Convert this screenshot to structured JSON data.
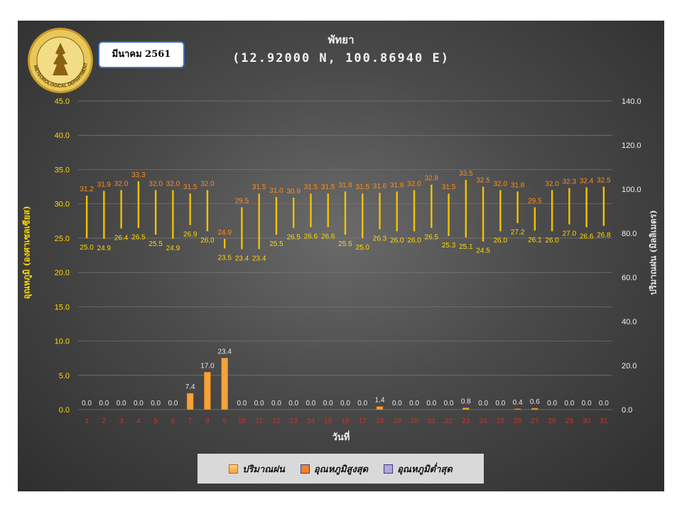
{
  "header": {
    "title": "พัทยา",
    "subtitle": "(12.92000 N, 100.86940 E)",
    "month_label": "มีนาคม 2561",
    "logo_text": "METEOROLOGICAL DEPARTMENT"
  },
  "legend": {
    "items": [
      "ปริมาณฝน",
      "อุณหภูมิสูงสุด",
      "อุณหภูมิต่ำสุด"
    ]
  },
  "colors": {
    "rain": "#f4a33a",
    "max_temp": "#ff7f27",
    "min_temp": "#b4a7d6",
    "temp_bar": "#f2c200",
    "left_axis": "#ffd700",
    "tick_x": "#c0392b",
    "rain_label": "#e6e6e6",
    "min_label": "#ffd700",
    "max_label": "#ff8c1a"
  },
  "chart_data": {
    "type": "bar",
    "xlabel": "วันที่",
    "ylabel_left": "อุณหภูมิ (องศาเซลเซียส)",
    "ylabel_right": "ปริมาณฝน (มิลลิเมตร)",
    "ylim_left": [
      0,
      45
    ],
    "yticks_left": [
      "0.0",
      "5.0",
      "10.0",
      "15.0",
      "20.0",
      "25.0",
      "30.0",
      "35.0",
      "40.0",
      "45.0"
    ],
    "ylim_right": [
      0,
      140
    ],
    "yticks_right": [
      "0.0",
      "20.0",
      "40.0",
      "60.0",
      "80.0",
      "100.0",
      "120.0",
      "140.0"
    ],
    "grid": true,
    "legend_position": "bottom",
    "categories": [
      "1",
      "2",
      "3",
      "4",
      "5",
      "6",
      "7",
      "8",
      "9",
      "10",
      "11",
      "12",
      "13",
      "14",
      "15",
      "16",
      "17",
      "18",
      "19",
      "20",
      "21",
      "22",
      "23",
      "24",
      "25",
      "26",
      "27",
      "28",
      "29",
      "30",
      "31"
    ],
    "series": [
      {
        "name": "ปริมาณฝน",
        "values": [
          0,
          0,
          0,
          0,
          0,
          0,
          7.4,
          17.0,
          23.4,
          0,
          0,
          0,
          0,
          0,
          0,
          0,
          0,
          1.4,
          0,
          0,
          0,
          0,
          0.8,
          0,
          0,
          0.4,
          0.6,
          0,
          0,
          0,
          0
        ],
        "labels": [
          "0.0",
          "0.0",
          "0.0",
          "0.0",
          "0.0",
          "0.0",
          "7.4",
          "17.0",
          "23.4",
          "0.0",
          "0.0",
          "0.0",
          "0.0",
          "0.0",
          "0.0",
          "0.0",
          "0.0",
          "1.4",
          "0.0",
          "0.0",
          "0.0",
          "0.0",
          "0.8",
          "0.0",
          "0.0",
          "0.4",
          "0.6",
          "0.0",
          "0.0",
          "0.0",
          "0.0"
        ]
      },
      {
        "name": "อุณหภูมิสูงสุด",
        "values": [
          31.2,
          31.9,
          32.0,
          33.3,
          32.0,
          32.0,
          31.5,
          32.0,
          24.9,
          29.5,
          31.5,
          31.0,
          30.9,
          31.5,
          31.5,
          31.8,
          31.5,
          31.6,
          31.8,
          32.0,
          32.8,
          31.5,
          33.5,
          32.5,
          32.0,
          31.8,
          29.5,
          32.0,
          32.3,
          32.4,
          32.5
        ],
        "labels": [
          "31.2",
          "31.9",
          "32.0",
          "33.3",
          "32.0",
          "32.0",
          "31.5",
          "32.0",
          "24.9",
          "29.5",
          "31.5",
          "31.0",
          "30.9",
          "31.5",
          "31.5",
          "31.8",
          "31.5",
          "31.6",
          "31.8",
          "32.0",
          "32.8",
          "31.5",
          "33.5",
          "32.5",
          "32.0",
          "31.8",
          "29.5",
          "32.0",
          "32.3",
          "32.4",
          "32.5"
        ]
      },
      {
        "name": "อุณหภูมิต่ำสุด",
        "values": [
          25.0,
          24.9,
          26.4,
          26.5,
          25.5,
          24.9,
          26.9,
          26.0,
          23.5,
          23.4,
          23.4,
          25.5,
          26.5,
          26.6,
          26.6,
          25.5,
          25.0,
          26.3,
          26.0,
          26.0,
          26.5,
          25.3,
          25.1,
          24.5,
          26.0,
          27.2,
          26.1,
          26.0,
          27.0,
          26.6,
          26.8
        ],
        "labels": [
          "25.0",
          "24.9",
          "26.4",
          "26.5",
          "25.5",
          "24.9",
          "26.9",
          "26.0",
          "23.5",
          "23.4",
          "23.4",
          "25.5",
          "26.5",
          "26.6",
          "26.6",
          "25.5",
          "25.0",
          "26.3",
          "26.0",
          "26.0",
          "26.5",
          "25.3",
          "25.1",
          "24.5",
          "26.0",
          "27.2",
          "26.1",
          "26.0",
          "27.0",
          "26.6",
          "26.8"
        ]
      }
    ]
  }
}
